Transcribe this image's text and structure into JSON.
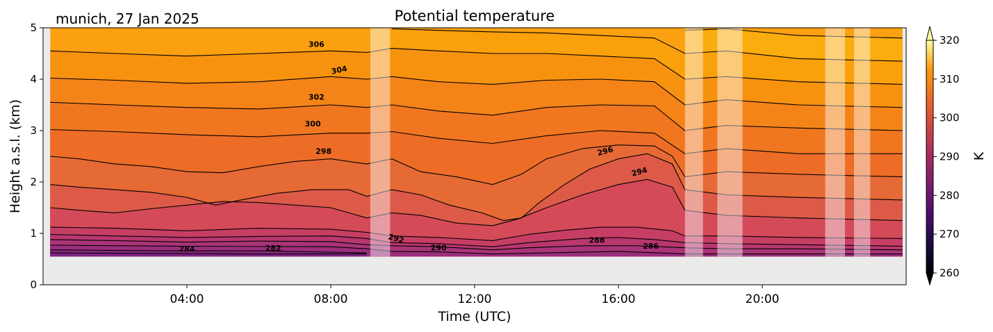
{
  "chart_data": {
    "type": "heatmap",
    "title": "Potential temperature",
    "subtitle": "munich, 27 Jan 2025",
    "xlabel": "Time (UTC)",
    "ylabel": "Height a.s.l. (km)",
    "xlim_hours": [
      0,
      24
    ],
    "ylim_km": [
      0,
      5
    ],
    "data_top_km": 5.0,
    "data_bottom_km": 0.55,
    "data_time_range_hours": [
      0.2,
      23.9
    ],
    "x_ticks": [
      {
        "h": 4,
        "label": "04:00"
      },
      {
        "h": 8,
        "label": "08:00"
      },
      {
        "h": 12,
        "label": "12:00"
      },
      {
        "h": 16,
        "label": "16:00"
      },
      {
        "h": 20,
        "label": "20:00"
      }
    ],
    "y_ticks": [
      {
        "v": 0,
        "label": "0"
      },
      {
        "v": 1,
        "label": "1"
      },
      {
        "v": 2,
        "label": "2"
      },
      {
        "v": 3,
        "label": "3"
      },
      {
        "v": 4,
        "label": "4"
      },
      {
        "v": 5,
        "label": "5"
      }
    ],
    "colorbar": {
      "label": "K",
      "min": 260,
      "max": 320,
      "extend": "both",
      "cmap": "inferno",
      "ticks": [
        {
          "v": 260,
          "label": "260"
        },
        {
          "v": 270,
          "label": "270"
        },
        {
          "v": 280,
          "label": "280"
        },
        {
          "v": 290,
          "label": "290"
        },
        {
          "v": 300,
          "label": "300"
        },
        {
          "v": 310,
          "label": "310"
        },
        {
          "v": 320,
          "label": "320"
        }
      ]
    },
    "masked_periods_hours": [
      [
        9.1,
        9.65
      ],
      [
        17.85,
        18.35
      ],
      [
        18.75,
        19.45
      ],
      [
        21.75,
        22.3
      ],
      [
        22.55,
        23.0
      ]
    ],
    "contour_labels": [
      {
        "text": "306",
        "h": 7.6,
        "km": 4.63,
        "rot": 0
      },
      {
        "text": "304",
        "h": 8.25,
        "km": 4.13,
        "rot": -12
      },
      {
        "text": "302",
        "h": 7.6,
        "km": 3.6,
        "rot": 0
      },
      {
        "text": "300",
        "h": 7.5,
        "km": 3.08,
        "rot": 0
      },
      {
        "text": "298",
        "h": 7.8,
        "km": 2.55,
        "rot": 0
      },
      {
        "text": "296",
        "h": 15.65,
        "km": 2.55,
        "rot": -15
      },
      {
        "text": "294",
        "h": 16.6,
        "km": 2.15,
        "rot": -15
      },
      {
        "text": "292",
        "h": 9.8,
        "km": 0.85,
        "rot": 15
      },
      {
        "text": "290",
        "h": 11.0,
        "km": 0.67,
        "rot": 0
      },
      {
        "text": "288",
        "h": 15.4,
        "km": 0.82,
        "rot": 0
      },
      {
        "text": "286",
        "h": 16.9,
        "km": 0.7,
        "rot": 0
      },
      {
        "text": "284",
        "h": 4.0,
        "km": 0.65,
        "rot": 0
      },
      {
        "text": "282",
        "h": 6.4,
        "km": 0.66,
        "rot": 0
      }
    ],
    "contours": [
      {
        "theta": 282,
        "points": [
          [
            0.2,
            0.62
          ],
          [
            3.5,
            0.61
          ],
          [
            6,
            0.6
          ],
          [
            9.0,
            0.6
          ]
        ]
      },
      {
        "theta": 284,
        "points": [
          [
            0.2,
            0.68
          ],
          [
            3.5,
            0.66
          ],
          [
            6,
            0.66
          ],
          [
            9.0,
            0.62
          ]
        ]
      },
      {
        "theta": 286,
        "points": [
          [
            0.2,
            0.77
          ],
          [
            4,
            0.75
          ],
          [
            8,
            0.74
          ],
          [
            9.0,
            0.7
          ],
          [
            9.7,
            0.65
          ],
          [
            11,
            0.64
          ],
          [
            12.5,
            0.6
          ],
          [
            14,
            0.62
          ],
          [
            16,
            0.65
          ],
          [
            17.85,
            0.6
          ],
          [
            23.9,
            0.6
          ]
        ]
      },
      {
        "theta": 288,
        "points": [
          [
            0.2,
            0.88
          ],
          [
            2,
            0.86
          ],
          [
            4,
            0.83
          ],
          [
            6,
            0.85
          ],
          [
            8,
            0.84
          ],
          [
            9.0,
            0.78
          ],
          [
            9.7,
            0.76
          ],
          [
            11,
            0.74
          ],
          [
            12.5,
            0.68
          ],
          [
            13.5,
            0.72
          ],
          [
            15,
            0.76
          ],
          [
            16.5,
            0.76
          ],
          [
            17.85,
            0.72
          ],
          [
            19,
            0.7
          ],
          [
            21,
            0.7
          ],
          [
            23.9,
            0.68
          ]
        ]
      },
      {
        "theta": 290,
        "points": [
          [
            0.2,
            0.98
          ],
          [
            2,
            0.95
          ],
          [
            4,
            0.92
          ],
          [
            6,
            0.94
          ],
          [
            8,
            0.95
          ],
          [
            9.0,
            0.9
          ],
          [
            9.7,
            0.82
          ],
          [
            11,
            0.8
          ],
          [
            12.5,
            0.74
          ],
          [
            13.5,
            0.82
          ],
          [
            15,
            0.9
          ],
          [
            16,
            0.92
          ],
          [
            17,
            0.88
          ],
          [
            17.85,
            0.82
          ],
          [
            19,
            0.8
          ],
          [
            21,
            0.78
          ],
          [
            23.9,
            0.75
          ]
        ]
      },
      {
        "theta": 292,
        "points": [
          [
            0.2,
            1.12
          ],
          [
            2,
            1.1
          ],
          [
            4,
            1.05
          ],
          [
            6,
            1.1
          ],
          [
            8,
            1.08
          ],
          [
            9.0,
            1.02
          ],
          [
            9.7,
            0.95
          ],
          [
            11,
            0.92
          ],
          [
            12.5,
            0.86
          ],
          [
            13.5,
            0.98
          ],
          [
            14.5,
            1.06
          ],
          [
            15.5,
            1.12
          ],
          [
            16.5,
            1.12
          ],
          [
            17.5,
            1.05
          ],
          [
            17.85,
            0.95
          ],
          [
            19,
            0.95
          ],
          [
            21,
            0.92
          ],
          [
            23.9,
            0.9
          ]
        ]
      },
      {
        "theta": 294,
        "points": [
          [
            0.2,
            1.5
          ],
          [
            1,
            1.45
          ],
          [
            2,
            1.4
          ],
          [
            3,
            1.48
          ],
          [
            4,
            1.55
          ],
          [
            5,
            1.62
          ],
          [
            6,
            1.6
          ],
          [
            7,
            1.55
          ],
          [
            8,
            1.5
          ],
          [
            9.0,
            1.3
          ],
          [
            9.7,
            1.4
          ],
          [
            10.5,
            1.35
          ],
          [
            11.5,
            1.2
          ],
          [
            12.5,
            1.15
          ],
          [
            13.2,
            1.28
          ],
          [
            14,
            1.5
          ],
          [
            15,
            1.75
          ],
          [
            16,
            1.95
          ],
          [
            16.8,
            2.05
          ],
          [
            17.5,
            1.9
          ],
          [
            17.85,
            1.45
          ],
          [
            19,
            1.35
          ],
          [
            21,
            1.3
          ],
          [
            23.9,
            1.25
          ]
        ]
      },
      {
        "theta": 296,
        "points": [
          [
            0.2,
            1.95
          ],
          [
            1,
            1.9
          ],
          [
            2,
            1.85
          ],
          [
            3,
            1.8
          ],
          [
            4,
            1.7
          ],
          [
            4.8,
            1.55
          ],
          [
            5.5,
            1.65
          ],
          [
            6.5,
            1.78
          ],
          [
            7.5,
            1.85
          ],
          [
            8.5,
            1.85
          ],
          [
            9.0,
            1.72
          ],
          [
            9.7,
            1.85
          ],
          [
            10.5,
            1.75
          ],
          [
            11.3,
            1.55
          ],
          [
            12.2,
            1.4
          ],
          [
            12.8,
            1.25
          ],
          [
            13.3,
            1.3
          ],
          [
            13.8,
            1.6
          ],
          [
            14.5,
            1.95
          ],
          [
            15.2,
            2.25
          ],
          [
            16,
            2.45
          ],
          [
            16.8,
            2.55
          ],
          [
            17.5,
            2.35
          ],
          [
            17.85,
            1.85
          ],
          [
            19,
            1.75
          ],
          [
            21,
            1.7
          ],
          [
            23.9,
            1.65
          ]
        ]
      },
      {
        "theta": 298,
        "points": [
          [
            0.2,
            2.5
          ],
          [
            1,
            2.45
          ],
          [
            2,
            2.35
          ],
          [
            3,
            2.3
          ],
          [
            4,
            2.2
          ],
          [
            5,
            2.18
          ],
          [
            6,
            2.3
          ],
          [
            7,
            2.4
          ],
          [
            8,
            2.45
          ],
          [
            9.0,
            2.35
          ],
          [
            9.7,
            2.45
          ],
          [
            10.5,
            2.2
          ],
          [
            11.5,
            2.1
          ],
          [
            12.5,
            1.95
          ],
          [
            13.3,
            2.15
          ],
          [
            14,
            2.45
          ],
          [
            15,
            2.65
          ],
          [
            16,
            2.72
          ],
          [
            17,
            2.7
          ],
          [
            17.5,
            2.5
          ],
          [
            17.85,
            2.1
          ],
          [
            19,
            2.2
          ],
          [
            21,
            2.15
          ],
          [
            23.9,
            2.1
          ]
        ]
      },
      {
        "theta": 300,
        "points": [
          [
            0.2,
            3.02
          ],
          [
            2,
            2.98
          ],
          [
            4,
            2.92
          ],
          [
            6,
            2.88
          ],
          [
            8,
            2.95
          ],
          [
            9.0,
            2.95
          ],
          [
            9.7,
            2.98
          ],
          [
            11,
            2.85
          ],
          [
            12.5,
            2.75
          ],
          [
            14,
            2.9
          ],
          [
            15.5,
            3.0
          ],
          [
            17,
            2.95
          ],
          [
            17.85,
            2.55
          ],
          [
            19,
            2.65
          ],
          [
            21,
            2.55
          ],
          [
            23.9,
            2.55
          ]
        ]
      },
      {
        "theta": 302,
        "points": [
          [
            0.2,
            3.55
          ],
          [
            2,
            3.5
          ],
          [
            4,
            3.45
          ],
          [
            6,
            3.42
          ],
          [
            8,
            3.5
          ],
          [
            9.0,
            3.45
          ],
          [
            9.7,
            3.5
          ],
          [
            11,
            3.38
          ],
          [
            12.5,
            3.3
          ],
          [
            14,
            3.45
          ],
          [
            15.5,
            3.5
          ],
          [
            17,
            3.48
          ],
          [
            17.85,
            3.0
          ],
          [
            19,
            3.1
          ],
          [
            21,
            3.05
          ],
          [
            23.9,
            3.0
          ]
        ]
      },
      {
        "theta": 304,
        "points": [
          [
            0.2,
            4.02
          ],
          [
            2,
            3.98
          ],
          [
            4,
            3.92
          ],
          [
            6,
            3.95
          ],
          [
            8,
            4.05
          ],
          [
            9.0,
            4.0
          ],
          [
            9.7,
            4.05
          ],
          [
            11,
            3.95
          ],
          [
            12.5,
            3.9
          ],
          [
            14,
            3.98
          ],
          [
            15.5,
            4.0
          ],
          [
            17,
            3.95
          ],
          [
            17.85,
            3.5
          ],
          [
            19,
            3.6
          ],
          [
            21,
            3.5
          ],
          [
            23.9,
            3.45
          ]
        ]
      },
      {
        "theta": 306,
        "points": [
          [
            0.2,
            4.55
          ],
          [
            2,
            4.5
          ],
          [
            4,
            4.45
          ],
          [
            6,
            4.5
          ],
          [
            8,
            4.55
          ],
          [
            9.0,
            4.52
          ],
          [
            9.7,
            4.6
          ],
          [
            11,
            4.55
          ],
          [
            12.5,
            4.5
          ],
          [
            14,
            4.5
          ],
          [
            15.5,
            4.45
          ],
          [
            17,
            4.4
          ],
          [
            17.85,
            4.0
          ],
          [
            19,
            4.05
          ],
          [
            21,
            3.95
          ],
          [
            23.9,
            3.9
          ]
        ]
      },
      {
        "theta": 308,
        "points": [
          [
            9.7,
            4.98
          ],
          [
            11,
            4.95
          ],
          [
            12.5,
            4.92
          ],
          [
            14,
            4.9
          ],
          [
            15.5,
            4.85
          ],
          [
            17,
            4.8
          ],
          [
            17.85,
            4.5
          ],
          [
            19,
            4.55
          ],
          [
            21,
            4.4
          ],
          [
            23.9,
            4.35
          ]
        ]
      },
      {
        "theta": 310,
        "points": [
          [
            17.85,
            4.95
          ],
          [
            19,
            4.98
          ],
          [
            21,
            4.85
          ],
          [
            23.9,
            4.8
          ]
        ]
      }
    ]
  }
}
